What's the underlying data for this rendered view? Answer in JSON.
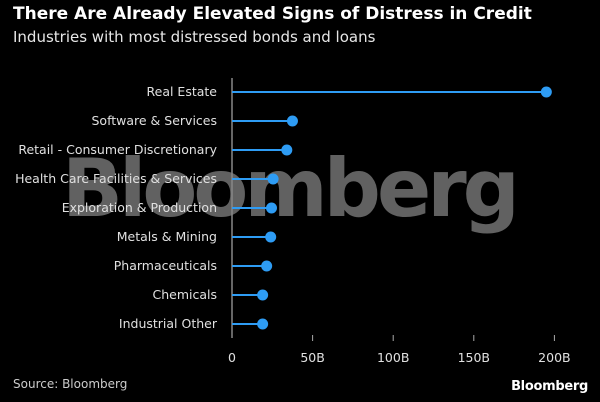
{
  "header": {
    "title": "There Are Already Elevated Signs of Distress in Credit",
    "subtitle": "Industries with most distressed bonds and loans"
  },
  "footer": {
    "source": "Source: Bloomberg",
    "logo": "Bloomberg"
  },
  "watermark": "Bloomberg",
  "chart_data": {
    "type": "lollipop",
    "orientation": "horizontal",
    "title": "There Are Already Elevated Signs of Distress in Credit",
    "subtitle": "Industries with most distressed bonds and loans",
    "categories": [
      "Real Estate",
      "Software & Services",
      "Retail - Consumer Discretionary",
      "Health Care Facilities & Services",
      "Exploration & Production",
      "Metals & Mining",
      "Pharmaceuticals",
      "Chemicals",
      "Industrial Other"
    ],
    "values": [
      195,
      37.5,
      34,
      25.5,
      24.5,
      24,
      21.5,
      19,
      19
    ],
    "unit": "B",
    "xlim": [
      0,
      200
    ],
    "xticks": [
      0,
      50,
      100,
      150,
      200
    ],
    "xtick_labels": [
      "0",
      "50B",
      "100B",
      "150B",
      "200B"
    ],
    "grid": false,
    "color": "#2e9cf4"
  }
}
